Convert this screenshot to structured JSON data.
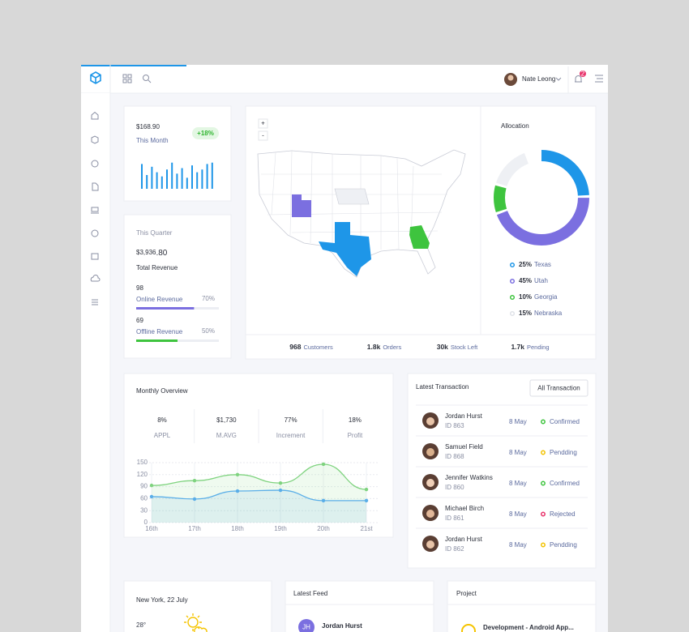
{
  "header": {
    "user": "Nate Leong",
    "notifications": "2"
  },
  "month_card": {
    "amount": "$168.90",
    "period": "This Month",
    "change": "+18%",
    "bars": [
      90,
      50,
      80,
      60,
      45,
      70,
      95,
      55,
      75,
      40,
      85,
      60,
      70,
      90,
      95
    ],
    "color": "#1e96e8"
  },
  "quarter_card": {
    "period": "This Quarter",
    "amount": "$3,936",
    "cents": ".80",
    "caption": "Total Revenue",
    "online": {
      "value": "98",
      "label": "Online Revenue",
      "percent": 70,
      "percent_label": "70%",
      "color": "#7b6fe0"
    },
    "offline": {
      "value": "69",
      "label": "Offline Revenue",
      "percent": 50,
      "percent_label": "50%",
      "color": "#3ec43e"
    }
  },
  "map_card": {
    "zoom_in": "+",
    "zoom_out": "-",
    "stats": [
      {
        "value": "968",
        "label": "Customers"
      },
      {
        "value": "1.8k",
        "label": "Orders"
      },
      {
        "value": "30k",
        "label": "Stock Left"
      },
      {
        "value": "1.7k",
        "label": "Pending"
      }
    ]
  },
  "allocation": {
    "title": "Allocation",
    "items": [
      {
        "percent": 25,
        "percent_label": "25%",
        "name": "Texas",
        "color": "#1e96e8"
      },
      {
        "percent": 45,
        "percent_label": "45%",
        "name": "Utah",
        "color": "#7b6fe0"
      },
      {
        "percent": 10,
        "percent_label": "10%",
        "name": "Georgia",
        "color": "#3ec43e"
      },
      {
        "percent": 15,
        "percent_label": "15%",
        "name": "Nebraska",
        "color": "#eef0f4"
      }
    ]
  },
  "overview": {
    "title": "Monthly Overview",
    "stats": [
      {
        "value": "8%",
        "label": "APPL"
      },
      {
        "value": "$1,730",
        "label": "M.AVG"
      },
      {
        "value": "77%",
        "label": "Increment"
      },
      {
        "value": "18%",
        "label": "Profit"
      }
    ],
    "chart": {
      "type": "line",
      "categories": [
        "16th",
        "17th",
        "18th",
        "19th",
        "20th",
        "21st"
      ],
      "ylim": [
        0,
        150
      ],
      "yticks": [
        0,
        30,
        60,
        90,
        120,
        150
      ],
      "grid": true,
      "series": [
        {
          "color": "#7fd37f",
          "values": [
            93,
            105,
            120,
            99,
            146,
            83
          ]
        },
        {
          "color": "#5aaee8",
          "values": [
            65,
            59,
            79,
            81,
            55,
            55
          ]
        }
      ]
    }
  },
  "transactions": {
    "title": "Latest Transaction",
    "button": "All Transaction",
    "rows": [
      {
        "name": "Jordan Hurst",
        "id": "ID 863",
        "date": "8 May",
        "status": "Confirmed",
        "status_color": "#3ec43e"
      },
      {
        "name": "Samuel Field",
        "id": "ID 868",
        "date": "8 May",
        "status": "Pendding",
        "status_color": "#f2c200"
      },
      {
        "name": "Jennifer Watkins",
        "id": "ID 860",
        "date": "8 May",
        "status": "Confirmed",
        "status_color": "#3ec43e"
      },
      {
        "name": "Michael Birch",
        "id": "ID 861",
        "date": "8 May",
        "status": "Rejected",
        "status_color": "#e8336b"
      },
      {
        "name": "Jordan Hurst",
        "id": "ID 862",
        "date": "8 May",
        "status": "Pendding",
        "status_color": "#f2c200"
      }
    ]
  },
  "weather": {
    "title": "New York, 22 July",
    "temperature": "28°"
  },
  "feed": {
    "title": "Latest Feed",
    "items": [
      {
        "initials": "JH",
        "name": "Jordan Hurst"
      }
    ]
  },
  "project": {
    "title": "Project",
    "items": [
      {
        "name": "Development - Android App..."
      }
    ]
  }
}
